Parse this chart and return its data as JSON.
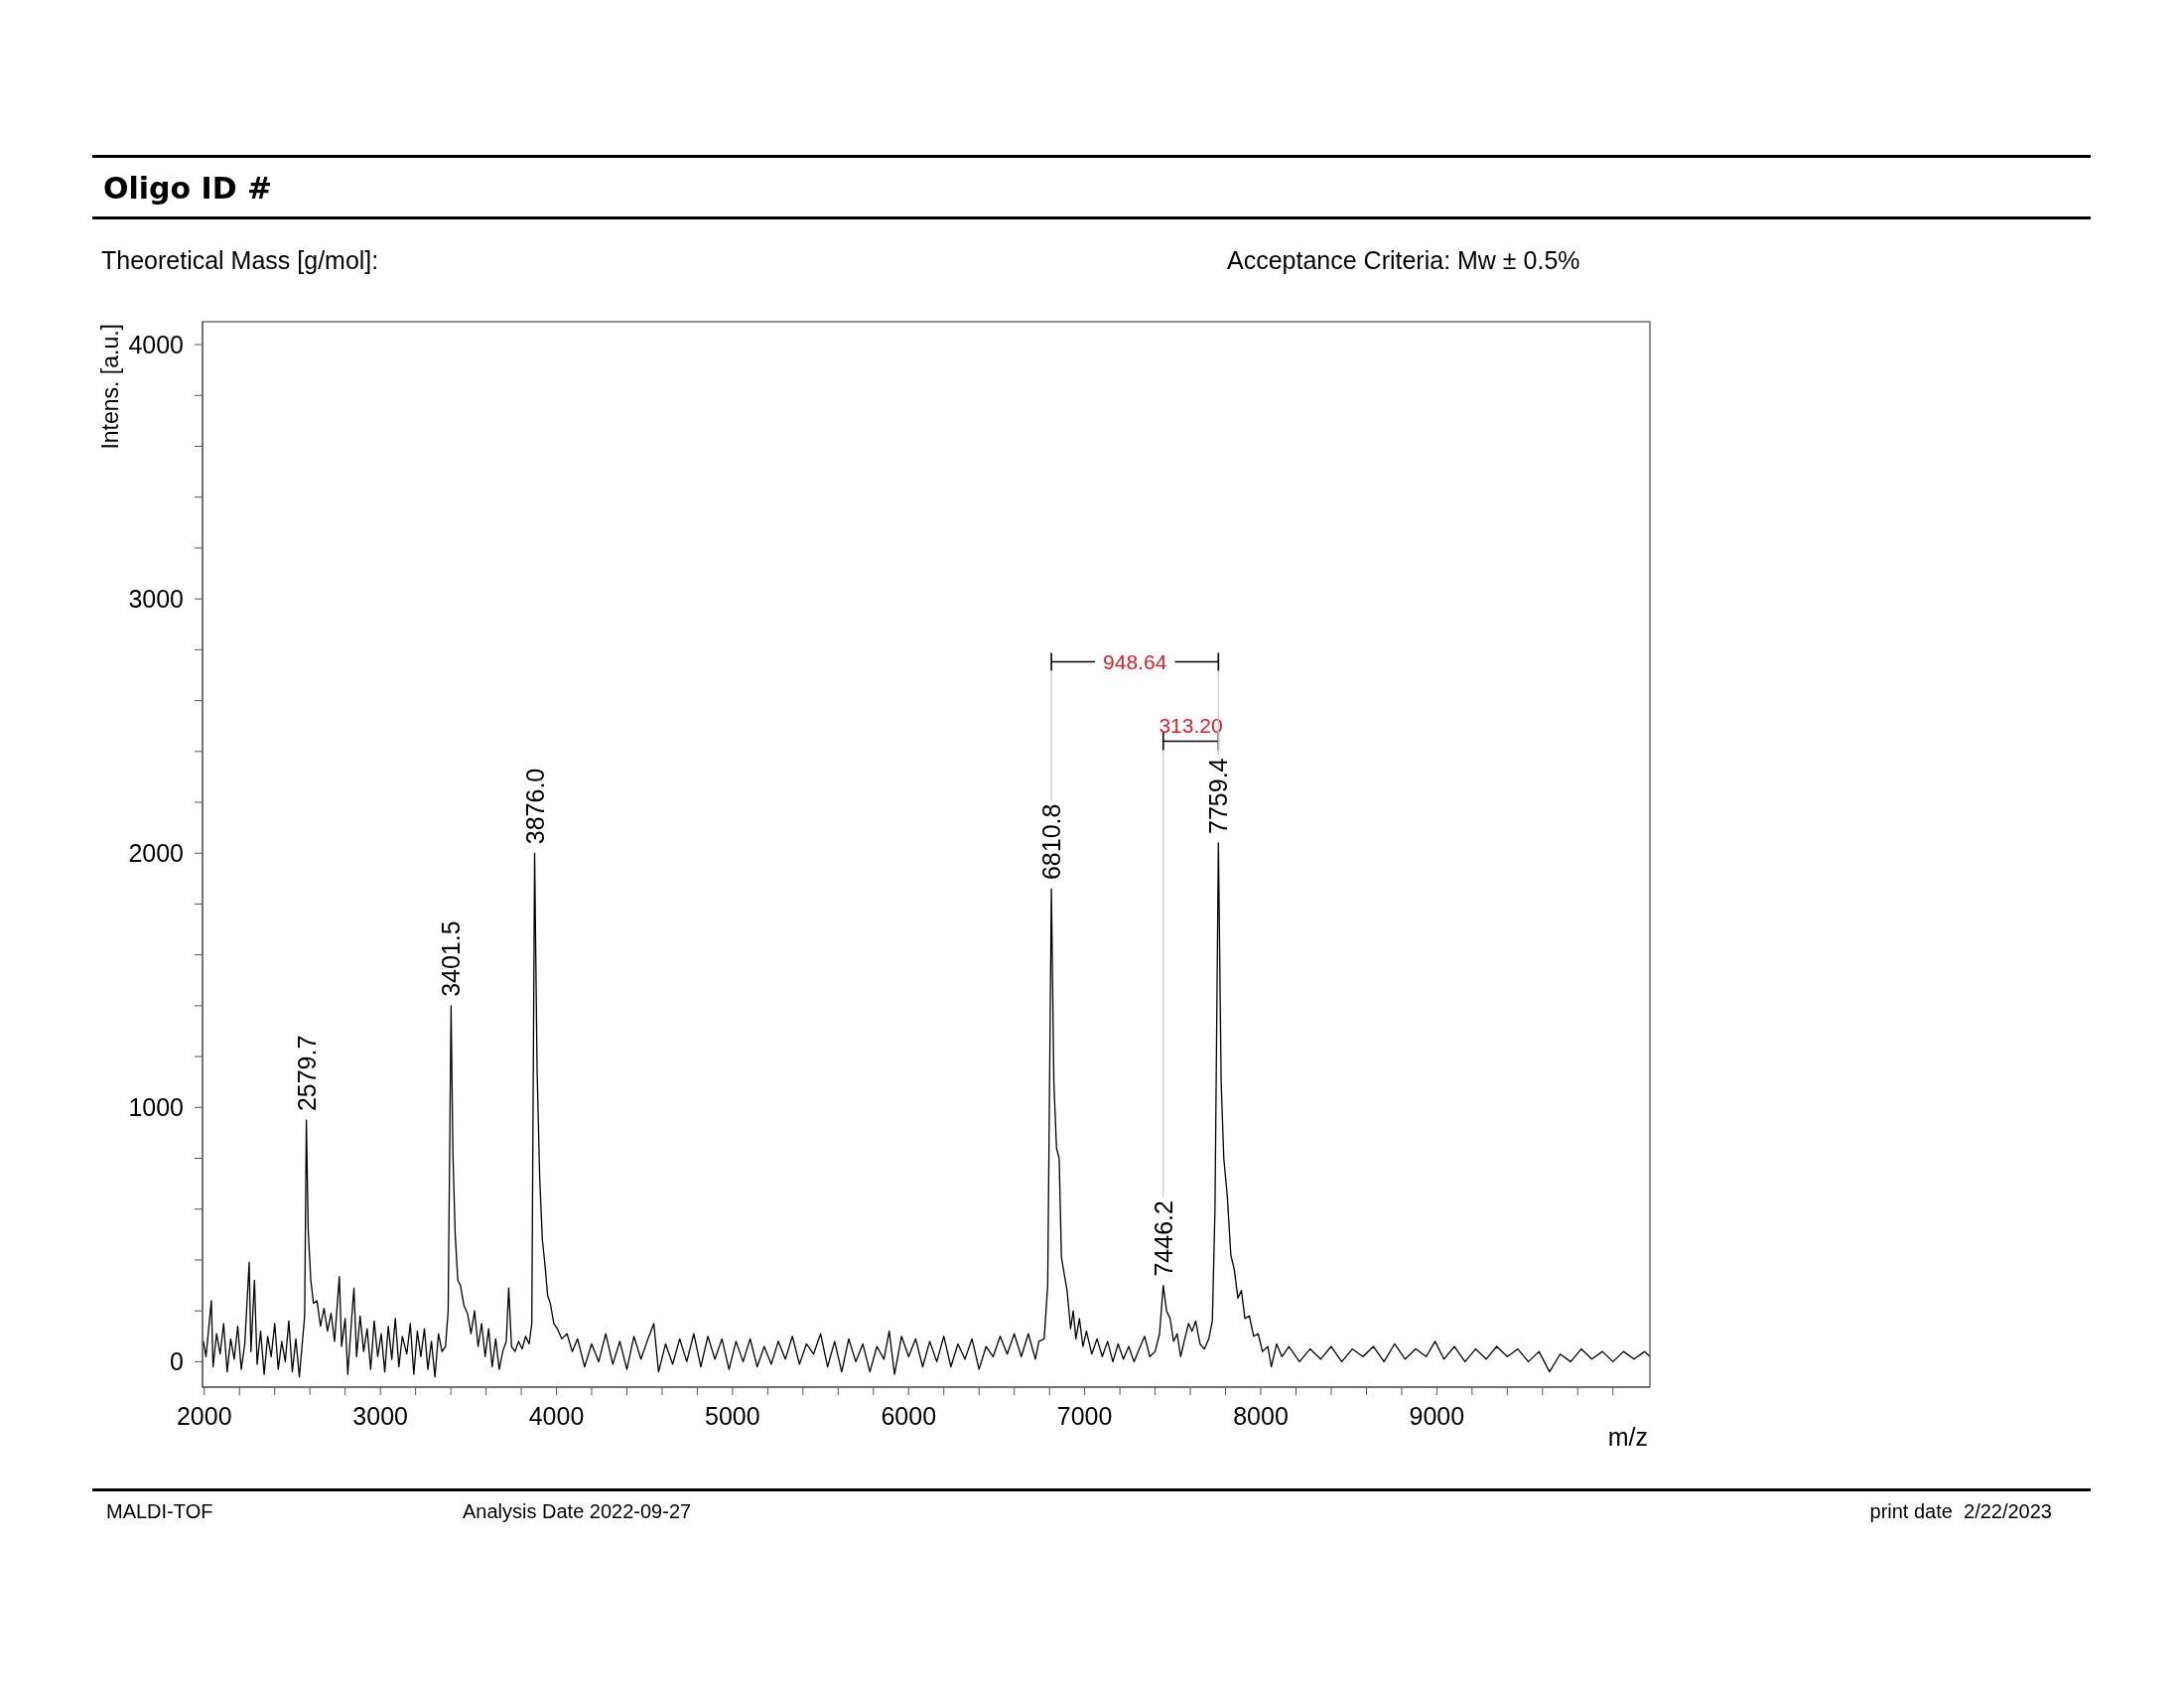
{
  "chart_data": {
    "type": "line",
    "title": "Oligo ID #",
    "subtitle": "Theoretical Mass [g/mol]:",
    "xlabel": "m/z",
    "ylabel": "Intens. [a.u.]",
    "annotations": [
      "Acceptance Criteria: Mw ± 0.5%",
      "MALDI-TOF",
      "Analysis Date 2022-09-27",
      "print date  2/22/2023",
      "948.64",
      "313.20",
      {
        "text": "2579.7",
        "x": 2579.7,
        "y": 950
      },
      {
        "text": "3401.5",
        "x": 3401.5,
        "y": 1400
      },
      {
        "text": "3876.0",
        "x": 3876,
        "y": 2000
      },
      {
        "text": "6810.8",
        "x": 6810.8,
        "y": 1860
      },
      {
        "text": "7446.2",
        "x": 7446.2,
        "y": 300
      },
      {
        "text": "7759.4",
        "x": 7759.4,
        "y": 2040
      }
    ],
    "color": "#000000",
    "x": [
      1995,
      2010,
      2025,
      2040,
      2050,
      2070,
      2090,
      2110,
      2130,
      2150,
      2170,
      2190,
      2210,
      2230,
      2255,
      2265,
      2285,
      2300,
      2320,
      2340,
      2360,
      2380,
      2400,
      2420,
      2440,
      2460,
      2480,
      2500,
      2520,
      2540,
      2560,
      2570,
      2579.7,
      2590,
      2605,
      2620,
      2640,
      2660,
      2680,
      2700,
      2720,
      2740,
      2767,
      2780,
      2800,
      2815,
      2835,
      2850,
      2865,
      2885,
      2905,
      2925,
      2945,
      2965,
      2985,
      3005,
      3025,
      3045,
      3065,
      3085,
      3105,
      3125,
      3150,
      3170,
      3190,
      3210,
      3230,
      3250,
      3270,
      3290,
      3310,
      3330,
      3350,
      3370,
      3385,
      3401.5,
      3412,
      3425,
      3440,
      3455,
      3475,
      3495,
      3515,
      3535,
      3555,
      3575,
      3595,
      3615,
      3635,
      3655,
      3675,
      3695,
      3715,
      3729,
      3745,
      3765,
      3785,
      3805,
      3825,
      3845,
      3860,
      3876.0,
      3890,
      3905,
      3920,
      3935,
      3950,
      3965,
      3985,
      4005,
      4030,
      4060,
      4090,
      4120,
      4160,
      4200,
      4240,
      4280,
      4320,
      4360,
      4400,
      4440,
      4480,
      4520,
      4553,
      4580,
      4620,
      4660,
      4700,
      4740,
      4780,
      4820,
      4860,
      4900,
      4940,
      4980,
      5020,
      5060,
      5100,
      5140,
      5180,
      5220,
      5260,
      5300,
      5340,
      5380,
      5420,
      5460,
      5500,
      5540,
      5580,
      5620,
      5660,
      5700,
      5740,
      5780,
      5820,
      5860,
      5890,
      5920,
      5960,
      6000,
      6040,
      6080,
      6120,
      6160,
      6200,
      6240,
      6280,
      6320,
      6360,
      6400,
      6440,
      6480,
      6520,
      6560,
      6600,
      6640,
      6680,
      6720,
      6740,
      6770,
      6790,
      6810.8,
      6825,
      6840,
      6855,
      6868,
      6885,
      6900,
      6920,
      6935,
      6950,
      6970,
      6990,
      7010,
      7040,
      7070,
      7100,
      7130,
      7160,
      7190,
      7220,
      7250,
      7280,
      7310,
      7340,
      7370,
      7400,
      7425,
      7446.2,
      7465,
      7485,
      7505,
      7525,
      7545,
      7565,
      7590,
      7610,
      7630,
      7655,
      7680,
      7705,
      7725,
      7740,
      7759.4,
      7775,
      7790,
      7810,
      7830,
      7850,
      7870,
      7890,
      7910,
      7935,
      7960,
      7985,
      8010,
      8040,
      8060,
      8090,
      8120,
      8160,
      8220,
      8280,
      8340,
      8400,
      8460,
      8520,
      8580,
      8640,
      8700,
      8760,
      8820,
      8880,
      8940,
      8990,
      9040,
      9100,
      9160,
      9220,
      9280,
      9340,
      9400,
      9460,
      9520,
      9580,
      9640,
      9700,
      9760,
      9820,
      9880,
      9940,
      10000,
      10060,
      10120,
      10180,
      10210
    ],
    "values": [
      80,
      20,
      130,
      240,
      -20,
      110,
      30,
      150,
      -40,
      90,
      10,
      140,
      -30,
      70,
      390,
      40,
      320,
      -10,
      120,
      -50,
      100,
      20,
      150,
      -30,
      80,
      0,
      160,
      -40,
      90,
      -60,
      100,
      180,
      950,
      520,
      320,
      230,
      240,
      140,
      210,
      120,
      190,
      80,
      335,
      60,
      170,
      -50,
      150,
      290,
      20,
      180,
      40,
      130,
      -30,
      160,
      20,
      110,
      -40,
      140,
      10,
      170,
      -20,
      100,
      30,
      150,
      -50,
      120,
      20,
      130,
      -30,
      80,
      -60,
      110,
      40,
      60,
      200,
      1400,
      820,
      500,
      320,
      300,
      220,
      190,
      110,
      200,
      60,
      150,
      20,
      130,
      -20,
      90,
      -30,
      40,
      80,
      290,
      60,
      40,
      80,
      50,
      100,
      70,
      150,
      2000,
      1150,
      720,
      480,
      380,
      260,
      230,
      150,
      130,
      90,
      110,
      40,
      90,
      -20,
      70,
      0,
      110,
      -10,
      80,
      -30,
      100,
      10,
      90,
      150,
      -40,
      70,
      -10,
      90,
      0,
      110,
      -20,
      100,
      10,
      90,
      -30,
      80,
      0,
      90,
      -20,
      60,
      -10,
      80,
      10,
      100,
      -10,
      70,
      30,
      110,
      -20,
      80,
      -40,
      90,
      0,
      70,
      -40,
      60,
      10,
      120,
      -50,
      100,
      20,
      90,
      -20,
      80,
      0,
      100,
      -20,
      70,
      10,
      90,
      -30,
      60,
      20,
      100,
      30,
      110,
      20,
      110,
      10,
      80,
      90,
      300,
      1860,
      1100,
      840,
      800,
      410,
      340,
      280,
      130,
      200,
      90,
      170,
      60,
      120,
      30,
      90,
      20,
      80,
      0,
      70,
      10,
      60,
      0,
      50,
      100,
      20,
      40,
      110,
      300,
      200,
      170,
      80,
      110,
      20,
      80,
      150,
      120,
      160,
      70,
      50,
      90,
      160,
      600,
      2040,
      1100,
      800,
      650,
      420,
      360,
      250,
      280,
      170,
      180,
      100,
      110,
      40,
      60,
      -20,
      70,
      20,
      60,
      0,
      50,
      10,
      60,
      0,
      50,
      20,
      60,
      0,
      70,
      10,
      50,
      20,
      80,
      10,
      60,
      0,
      50,
      10,
      60,
      20,
      50,
      0,
      40,
      -40,
      30,
      0,
      50,
      10,
      40,
      0,
      40,
      10,
      40,
      20
    ],
    "xlim": [
      1990,
      10210
    ],
    "xticks": [
      2000,
      {
        "value": 2200,
        "label": null
      },
      {
        "value": 2400,
        "label": null
      },
      {
        "value": 2600,
        "label": null
      },
      {
        "value": 2800,
        "label": null
      },
      3000,
      {
        "value": 3200,
        "label": null
      },
      {
        "value": 3400,
        "label": null
      },
      {
        "value": 3600,
        "label": null
      },
      {
        "value": 3800,
        "label": null
      },
      4000,
      {
        "value": 4200,
        "label": null
      },
      {
        "value": 4400,
        "label": null
      },
      {
        "value": 4600,
        "label": null
      },
      {
        "value": 4800,
        "label": null
      },
      5000,
      {
        "value": 5200,
        "label": null
      },
      {
        "value": 5400,
        "label": null
      },
      {
        "value": 5600,
        "label": null
      },
      {
        "value": 5800,
        "label": null
      },
      6000,
      {
        "value": 6200,
        "label": null
      },
      {
        "value": 6400,
        "label": null
      },
      {
        "value": 6600,
        "label": null
      },
      {
        "value": 6800,
        "label": null
      },
      7000,
      {
        "value": 7200,
        "label": null
      },
      {
        "value": 7400,
        "label": null
      },
      {
        "value": 7600,
        "label": null
      },
      {
        "value": 7800,
        "label": null
      },
      8000,
      {
        "value": 8200,
        "label": null
      },
      {
        "value": 8400,
        "label": null
      },
      {
        "value": 8600,
        "label": null
      },
      {
        "value": 8800,
        "label": null
      },
      9000,
      {
        "value": 9200,
        "label": null
      },
      {
        "value": 9400,
        "label": null
      },
      {
        "value": 9600,
        "label": null
      },
      {
        "value": 9800,
        "label": null
      },
      {
        "value": 10000,
        "label": null
      }
    ],
    "ylim": [
      -100,
      4090
    ],
    "yticks": [
      0,
      {
        "value": 200,
        "label": null
      },
      {
        "value": 400,
        "label": null
      },
      {
        "value": 600,
        "label": null
      },
      {
        "value": 800,
        "label": null
      },
      1000,
      {
        "value": 1200,
        "label": null
      },
      {
        "value": 1400,
        "label": null
      },
      {
        "value": 1600,
        "label": null
      },
      {
        "value": 1800,
        "label": null
      },
      2000,
      {
        "value": 2200,
        "label": null
      },
      {
        "value": 2400,
        "label": null
      },
      {
        "value": 2600,
        "label": null
      },
      {
        "value": 2800,
        "label": null
      },
      3000,
      {
        "value": 3200,
        "label": null
      },
      {
        "value": 3400,
        "label": null
      },
      {
        "value": 3600,
        "label": null
      },
      {
        "value": 3800,
        "label": null
      },
      4000
    ]
  }
}
